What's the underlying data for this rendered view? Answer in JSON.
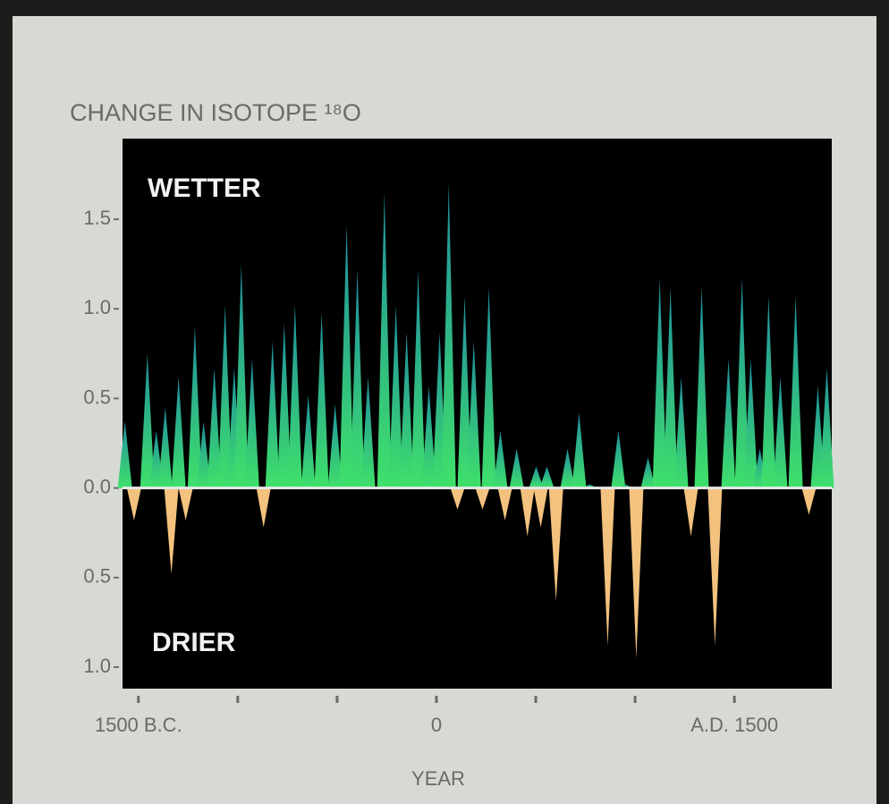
{
  "chart_data": {
    "type": "spike",
    "title": "CHANGE IN ISOTOPE ¹⁸O",
    "x_label": "YEAR",
    "annotations": [
      "WETTER",
      "DRIER"
    ],
    "positive_color": "#3fe06a",
    "positive_top_color": "#1f8fa0",
    "negative_color": "#f2c27e",
    "background": "#000000",
    "x": [
      -1568,
      -1522,
      -1455,
      -1410,
      -1365,
      -1334,
      -1298,
      -1262,
      -1216,
      -1172,
      -1118,
      -1064,
      -1018,
      -982,
      -928,
      -870,
      -825,
      -766,
      -712,
      -645,
      -578,
      -510,
      -452,
      -398,
      -344,
      -262,
      -204,
      -150,
      -92,
      -38,
      16,
      62,
      106,
      142,
      188,
      232,
      264,
      322,
      345,
      404,
      458,
      502,
      525,
      556,
      602,
      660,
      718,
      772,
      862,
      916,
      952,
      1006,
      1065,
      1124,
      1178,
      1232,
      1281,
      1335,
      1402,
      1470,
      1538,
      1582,
      1628,
      1672,
      1731,
      1808,
      1875,
      1920,
      1965
    ],
    "values": [
      0.37,
      -0.18,
      0.75,
      0.32,
      0.45,
      -0.48,
      0.62,
      -0.18,
      0.9,
      0.37,
      0.67,
      1.02,
      0.67,
      1.25,
      0.72,
      -0.22,
      0.82,
      0.92,
      1.02,
      0.52,
      0.98,
      0.47,
      1.47,
      1.22,
      0.62,
      1.65,
      1.02,
      0.87,
      1.22,
      0.57,
      0.87,
      1.7,
      -0.12,
      1.07,
      0.82,
      -0.12,
      1.12,
      0.32,
      -0.18,
      0.22,
      -0.27,
      0.12,
      -0.22,
      0.12,
      -0.63,
      0.22,
      0.42,
      0.02,
      -0.88,
      0.32,
      0.02,
      -0.95,
      0.17,
      1.17,
      1.12,
      0.62,
      -0.27,
      1.12,
      -0.88,
      0.72,
      1.17,
      0.72,
      0.22,
      1.07,
      0.62,
      1.07,
      -0.15,
      0.57,
      0.67
    ],
    "xlim": [
      -1580,
      1990
    ],
    "ylim": [
      -1.12,
      1.95
    ],
    "xticks": [
      {
        "value": -1500,
        "label": "1500 B.C."
      },
      {
        "value": -1000,
        "label": null
      },
      {
        "value": -500,
        "label": null
      },
      0,
      {
        "value": 500,
        "label": null
      },
      {
        "value": 1000,
        "label": null
      },
      {
        "value": 1500,
        "label": "A.D. 1500"
      }
    ],
    "yticks": [
      1.5,
      {
        "value": 1.0,
        "label": "1.0"
      },
      0.5,
      {
        "value": 0.0,
        "label": "0.0"
      },
      {
        "value": -0.5,
        "label": "0.5"
      },
      {
        "value": -1.0,
        "label": "1.0"
      }
    ]
  }
}
